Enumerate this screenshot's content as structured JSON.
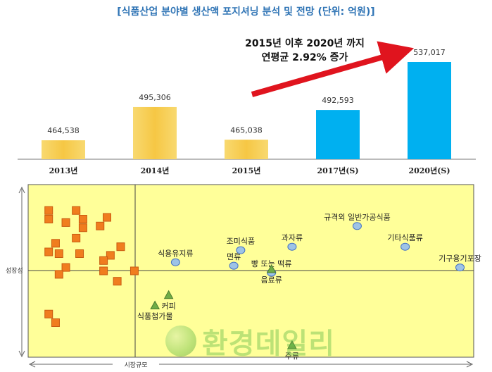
{
  "title": "[식품산업 분야별 생산액 포지셔닝 분석 및 전망 (단위: 억원)]",
  "callout": {
    "line1": "2015년 이후 2020년 까지",
    "line2": "연평균 2.92% 증가"
  },
  "watermark": "환경데일리",
  "colors": {
    "title": "#2f74b5",
    "bar_actual": "#f6c744",
    "bar_forecast": "#00b0f0",
    "arrow": "#e0141e",
    "scatter_bg": "#ffff99",
    "square": "#f07d1e",
    "circle": "#9dc3e6",
    "triangle": "#70ad47"
  },
  "chart_data": [
    {
      "type": "bar",
      "categories": [
        "2013년",
        "2014년",
        "2015년",
        "2017년(S)",
        "2020년(S)"
      ],
      "values": [
        464538,
        495306,
        465038,
        492593,
        537017
      ],
      "labels": [
        "464,538",
        "495,306",
        "465,038",
        "492,593",
        "537,017"
      ],
      "forecast": [
        false,
        false,
        false,
        true,
        true
      ]
    },
    {
      "type": "scatter",
      "xlabel": "시장규모",
      "ylabel": "성장성",
      "grid": false,
      "series": [
        {
          "marker": "square",
          "points": [
            {
              "x": 0.06,
              "y": 0.85
            },
            {
              "x": 0.14,
              "y": 0.85
            },
            {
              "x": 0.06,
              "y": 0.8
            },
            {
              "x": 0.16,
              "y": 0.8
            },
            {
              "x": 0.23,
              "y": 0.81
            },
            {
              "x": 0.11,
              "y": 0.78
            },
            {
              "x": 0.16,
              "y": 0.75
            },
            {
              "x": 0.21,
              "y": 0.76
            },
            {
              "x": 0.14,
              "y": 0.69
            },
            {
              "x": 0.08,
              "y": 0.66
            },
            {
              "x": 0.06,
              "y": 0.61
            },
            {
              "x": 0.09,
              "y": 0.6
            },
            {
              "x": 0.15,
              "y": 0.6
            },
            {
              "x": 0.27,
              "y": 0.64
            },
            {
              "x": 0.24,
              "y": 0.59
            },
            {
              "x": 0.22,
              "y": 0.56
            },
            {
              "x": 0.11,
              "y": 0.52
            },
            {
              "x": 0.22,
              "y": 0.5
            },
            {
              "x": 0.31,
              "y": 0.5
            },
            {
              "x": 0.26,
              "y": 0.44
            },
            {
              "x": 0.09,
              "y": 0.48
            },
            {
              "x": 0.06,
              "y": 0.25
            },
            {
              "x": 0.08,
              "y": 0.2
            }
          ]
        },
        {
          "marker": "circle",
          "points": [
            {
              "x": 0.43,
              "y": 0.55,
              "label": "식용유지류"
            },
            {
              "x": 0.6,
              "y": 0.53,
              "label": "면류"
            },
            {
              "x": 0.62,
              "y": 0.62,
              "label": "조미식품"
            },
            {
              "x": 0.71,
              "y": 0.49,
              "label": "빵 또는 떡류"
            },
            {
              "x": 0.77,
              "y": 0.64,
              "label": "과자류"
            },
            {
              "x": 0.96,
              "y": 0.76,
              "label": "규격외 일반가공식품"
            },
            {
              "x": 1.1,
              "y": 0.64,
              "label": "기타식품류"
            },
            {
              "x": 1.26,
              "y": 0.52,
              "label": "기구용기포장"
            }
          ]
        },
        {
          "marker": "triangle",
          "points": [
            {
              "x": 0.71,
              "y": 0.51,
              "label": "음료류"
            },
            {
              "x": 0.41,
              "y": 0.36,
              "label": "커피"
            },
            {
              "x": 0.37,
              "y": 0.3,
              "label": "식품첨가물"
            },
            {
              "x": 0.77,
              "y": 0.07,
              "label": "주류"
            }
          ]
        }
      ]
    }
  ]
}
